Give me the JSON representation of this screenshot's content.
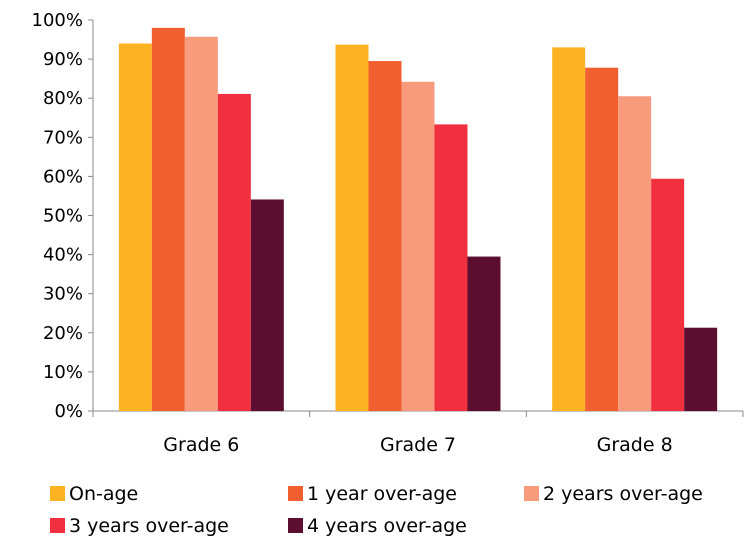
{
  "chart_data": {
    "type": "bar",
    "title": "",
    "xlabel": "",
    "ylabel": "",
    "categories": [
      "Grade 6",
      "Grade 7",
      "Grade 8"
    ],
    "yticks": [
      "0%",
      "10%",
      "20%",
      "30%",
      "40%",
      "50%",
      "60%",
      "70%",
      "80%",
      "90%",
      "100%"
    ],
    "ylim": [
      0,
      100
    ],
    "grid": false,
    "legend_position": "bottom",
    "series": [
      {
        "name": "On-age",
        "color": "#FBB321",
        "values": [
          94,
          93.7,
          93
        ]
      },
      {
        "name": "1 year over-age",
        "color": "#F15E30",
        "values": [
          98,
          89.5,
          87.8
        ]
      },
      {
        "name": "2 years over-age",
        "color": "#F89A7C",
        "values": [
          95.7,
          84.2,
          80.5
        ]
      },
      {
        "name": "3 years over-age",
        "color": "#F0303F",
        "values": [
          81.1,
          73.3,
          59.4
        ]
      },
      {
        "name": "4 years over-age",
        "color": "#5B0E2F",
        "values": [
          54.1,
          39.5,
          21.3
        ]
      }
    ]
  }
}
